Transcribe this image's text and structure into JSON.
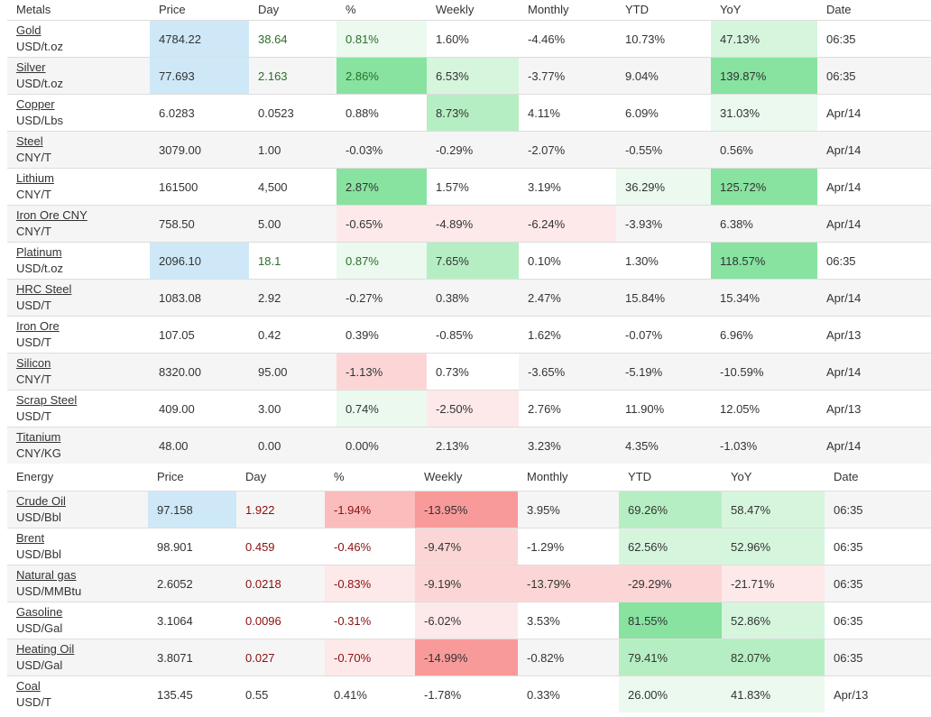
{
  "metals": {
    "headers": [
      "Metals",
      "Price",
      "Day",
      "%",
      "Weekly",
      "Monthly",
      "YTD",
      "YoY",
      "Date"
    ],
    "rows": [
      {
        "name": "Gold",
        "unit": "USD/t.oz",
        "price": "4784.22",
        "day": "38.64",
        "pct": "0.81%",
        "weekly": "1.60%",
        "monthly": "-4.46%",
        "ytd": "10.73%",
        "yoy": "47.13%",
        "date": "06:35"
      },
      {
        "name": "Silver",
        "unit": "USD/t.oz",
        "price": "77.693",
        "day": "2.163",
        "pct": "2.86%",
        "weekly": "6.53%",
        "monthly": "-3.77%",
        "ytd": "9.04%",
        "yoy": "139.87%",
        "date": "06:35"
      },
      {
        "name": "Copper",
        "unit": "USD/Lbs",
        "price": "6.0283",
        "day": "0.0523",
        "pct": "0.88%",
        "weekly": "8.73%",
        "monthly": "4.11%",
        "ytd": "6.09%",
        "yoy": "31.03%",
        "date": "Apr/14"
      },
      {
        "name": "Steel",
        "unit": "CNY/T",
        "price": "3079.00",
        "day": "1.00",
        "pct": "-0.03%",
        "weekly": "-0.29%",
        "monthly": "-2.07%",
        "ytd": "-0.55%",
        "yoy": "0.56%",
        "date": "Apr/14"
      },
      {
        "name": "Lithium",
        "unit": "CNY/T",
        "price": "161500",
        "day": "4,500",
        "pct": "2.87%",
        "weekly": "1.57%",
        "monthly": "3.19%",
        "ytd": "36.29%",
        "yoy": "125.72%",
        "date": "Apr/14"
      },
      {
        "name": "Iron Ore CNY",
        "unit": "CNY/T",
        "price": "758.50",
        "day": "5.00",
        "pct": "-0.65%",
        "weekly": "-4.89%",
        "monthly": "-6.24%",
        "ytd": "-3.93%",
        "yoy": "6.38%",
        "date": "Apr/14"
      },
      {
        "name": "Platinum",
        "unit": "USD/t.oz",
        "price": "2096.10",
        "day": "18.1",
        "pct": "0.87%",
        "weekly": "7.65%",
        "monthly": "0.10%",
        "ytd": "1.30%",
        "yoy": "118.57%",
        "date": "06:35"
      },
      {
        "name": "HRC Steel",
        "unit": "USD/T",
        "price": "1083.08",
        "day": "2.92",
        "pct": "-0.27%",
        "weekly": "0.38%",
        "monthly": "2.47%",
        "ytd": "15.84%",
        "yoy": "15.34%",
        "date": "Apr/14"
      },
      {
        "name": "Iron Ore",
        "unit": "USD/T",
        "price": "107.05",
        "day": "0.42",
        "pct": "0.39%",
        "weekly": "-0.85%",
        "monthly": "1.62%",
        "ytd": "-0.07%",
        "yoy": "6.96%",
        "date": "Apr/13"
      },
      {
        "name": "Silicon",
        "unit": "CNY/T",
        "price": "8320.00",
        "day": "95.00",
        "pct": "-1.13%",
        "weekly": "0.73%",
        "monthly": "-3.65%",
        "ytd": "-5.19%",
        "yoy": "-10.59%",
        "date": "Apr/14"
      },
      {
        "name": "Scrap Steel",
        "unit": "USD/T",
        "price": "409.00",
        "day": "3.00",
        "pct": "0.74%",
        "weekly": "-2.50%",
        "monthly": "2.76%",
        "ytd": "11.90%",
        "yoy": "12.05%",
        "date": "Apr/13"
      },
      {
        "name": "Titanium",
        "unit": "CNY/KG",
        "price": "48.00",
        "day": "0.00",
        "pct": "0.00%",
        "weekly": "2.13%",
        "monthly": "3.23%",
        "ytd": "4.35%",
        "yoy": "-1.03%",
        "date": "Apr/14"
      }
    ]
  },
  "energy": {
    "headers": [
      "Energy",
      "Price",
      "Day",
      "%",
      "Weekly",
      "Monthly",
      "YTD",
      "YoY",
      "Date"
    ],
    "rows": [
      {
        "name": "Crude Oil",
        "unit": "USD/Bbl",
        "price": "97.158",
        "day": "1.922",
        "pct": "-1.94%",
        "weekly": "-13.95%",
        "monthly": "3.95%",
        "ytd": "69.26%",
        "yoy": "58.47%",
        "date": "06:35"
      },
      {
        "name": "Brent",
        "unit": "USD/Bbl",
        "price": "98.901",
        "day": "0.459",
        "pct": "-0.46%",
        "weekly": "-9.47%",
        "monthly": "-1.29%",
        "ytd": "62.56%",
        "yoy": "52.96%",
        "date": "06:35"
      },
      {
        "name": "Natural gas",
        "unit": "USD/MMBtu",
        "price": "2.6052",
        "day": "0.0218",
        "pct": "-0.83%",
        "weekly": "-9.19%",
        "monthly": "-13.79%",
        "ytd": "-29.29%",
        "yoy": "-21.71%",
        "date": "06:35"
      },
      {
        "name": "Gasoline",
        "unit": "USD/Gal",
        "price": "3.1064",
        "day": "0.0096",
        "pct": "-0.31%",
        "weekly": "-6.02%",
        "monthly": "3.53%",
        "ytd": "81.55%",
        "yoy": "52.86%",
        "date": "06:35"
      },
      {
        "name": "Heating Oil",
        "unit": "USD/Gal",
        "price": "3.8071",
        "day": "0.027",
        "pct": "-0.70%",
        "weekly": "-14.99%",
        "monthly": "-0.82%",
        "ytd": "79.41%",
        "yoy": "82.07%",
        "date": "06:35"
      },
      {
        "name": "Coal",
        "unit": "USD/T",
        "price": "135.45",
        "day": "0.55",
        "pct": "0.41%",
        "weekly": "-1.78%",
        "monthly": "0.33%",
        "ytd": "26.00%",
        "yoy": "41.83%",
        "date": "Apr/13"
      }
    ]
  },
  "colors": {
    "price_highlight": "#cfe8f7",
    "green_1": "#ebf9ee",
    "green_2": "#d6f5dd",
    "green_3": "#b6eec3",
    "green_4": "#88e3a0",
    "red_1": "#fde9e9",
    "red_2": "#fcd6d6",
    "red_3": "#fbbcbc",
    "red_4": "#f99a9a",
    "positive_text": "#2b6e2b",
    "negative_text": "#8a1010"
  }
}
